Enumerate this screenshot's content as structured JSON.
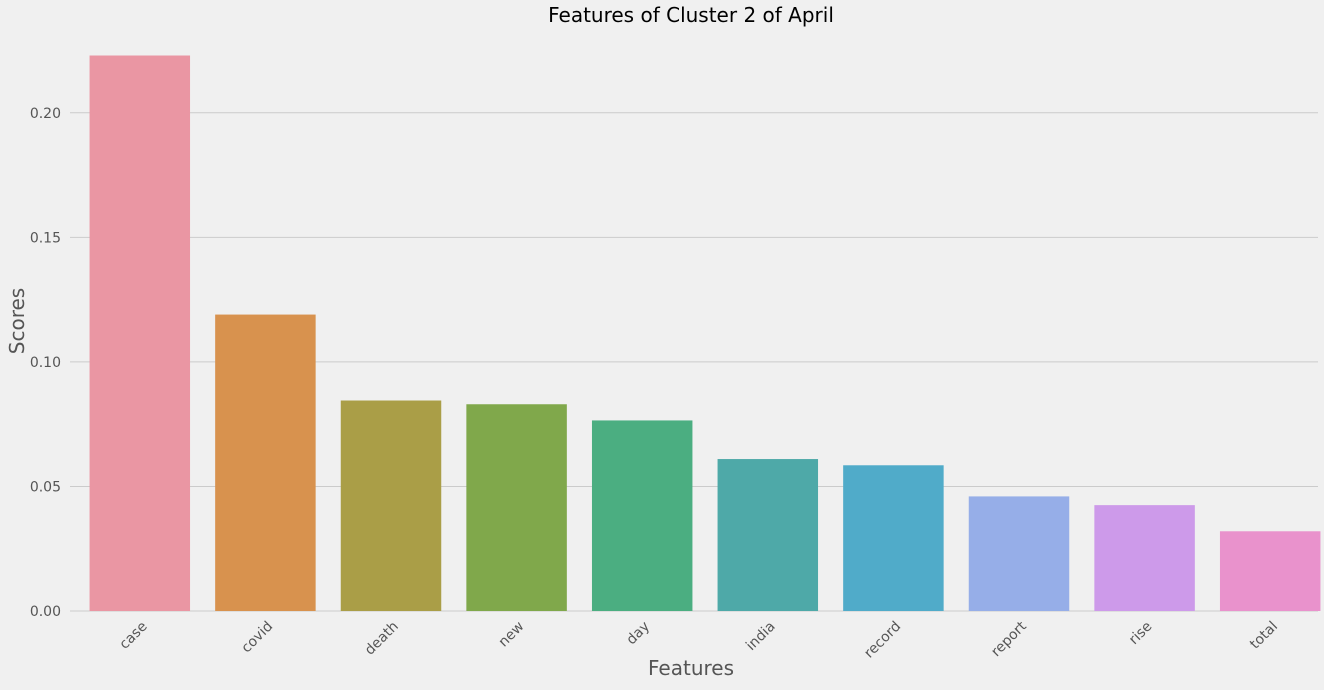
{
  "chart_data": {
    "type": "bar",
    "title": "Features of Cluster 2 of April",
    "xlabel": "Features",
    "ylabel": "Scores",
    "categories": [
      "case",
      "covid",
      "death",
      "new",
      "day",
      "india",
      "record",
      "report",
      "rise",
      "total"
    ],
    "values": [
      0.223,
      0.119,
      0.0845,
      0.083,
      0.0765,
      0.061,
      0.0585,
      0.046,
      0.0425,
      0.032
    ],
    "colors": [
      "#ea96a3",
      "#d8924e",
      "#aa9e47",
      "#80a84b",
      "#4bae81",
      "#4ea9a8",
      "#50abc9",
      "#96aee8",
      "#cd9aea",
      "#e992cc"
    ],
    "yticks": [
      "0.00",
      "0.05",
      "0.10",
      "0.15",
      "0.20"
    ],
    "ylim": [
      0,
      0.2232
    ],
    "grid": true,
    "legend": "none"
  }
}
